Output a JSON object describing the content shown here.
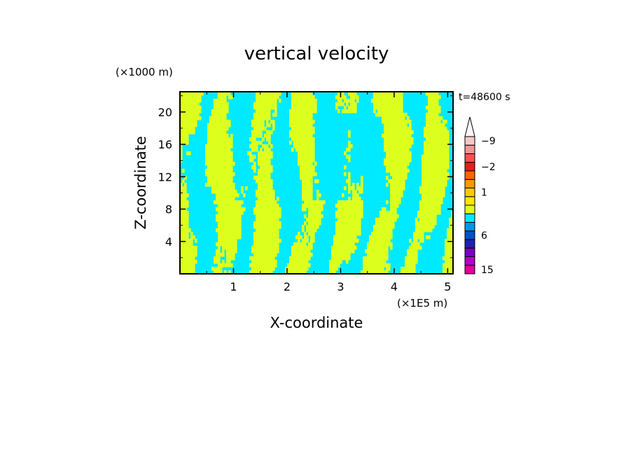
{
  "chart_data": {
    "type": "heatmap",
    "title": "vertical velocity",
    "xlabel": "X-coordinate",
    "ylabel": "Z-coordinate",
    "x_unit": "(×1E5 m)",
    "y_unit": "(×1000 m)",
    "time_label": "t=48600 s",
    "xlim": [
      0,
      5.1
    ],
    "ylim": [
      0,
      22.5
    ],
    "x_ticks": [
      1,
      2,
      3,
      4,
      5
    ],
    "y_ticks": [
      4,
      8,
      12,
      16,
      20
    ],
    "colorbar": {
      "tick_labels": [
        "15",
        "6",
        "1",
        "−2",
        "−9"
      ],
      "levels": [
        -12,
        -9,
        -6,
        -4,
        -2,
        -1,
        -0.5,
        0,
        0.5,
        1,
        2,
        4,
        6,
        9,
        12,
        15,
        21
      ],
      "colors": [
        "#e0009c",
        "#b400c8",
        "#7800c8",
        "#2020b4",
        "#0050c8",
        "#0096e6",
        "#00eaff",
        "#dcff1e",
        "#ffe600",
        "#ffc800",
        "#ff9600",
        "#ff6400",
        "#e61e1e",
        "#ff5050",
        "#f09696",
        "#f5c8c8"
      ],
      "extend": "max"
    },
    "field_colors": {
      "negative": "#00eaff",
      "positive": "#dcff1e"
    }
  }
}
